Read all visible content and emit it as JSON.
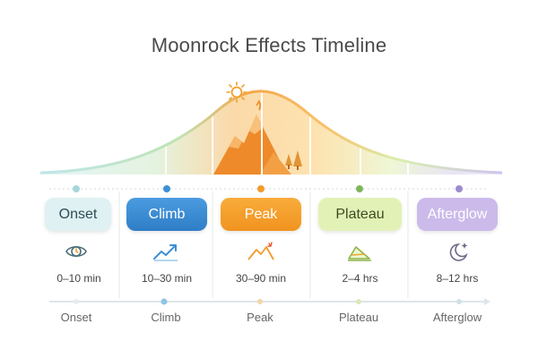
{
  "title": "Moonrock Effects Timeline",
  "phases": [
    {
      "name": "Onset",
      "duration": "0–10 min",
      "icon": "clock-eye-icon",
      "color": "#dff1f2",
      "text_color": "#2f4b55"
    },
    {
      "name": "Climb",
      "duration": "10–30 min",
      "icon": "trend-up-icon",
      "color": "#3d8fd6",
      "text_color": "#ffffff"
    },
    {
      "name": "Peak",
      "duration": "30–90 min",
      "icon": "mountain-peak-icon",
      "color": "#f6a025",
      "text_color": "#ffffff"
    },
    {
      "name": "Plateau",
      "duration": "2–4 hrs",
      "icon": "plateau-icon",
      "color": "#dff0b4",
      "text_color": "#3e4a20"
    },
    {
      "name": "Afterglow",
      "duration": "8–12 hrs",
      "icon": "moon-star-icon",
      "color": "#c9b7ea",
      "text_color": "#ffffff"
    }
  ],
  "timeline_labels": [
    "Onset",
    "Climb",
    "Peak",
    "Plateau",
    "Afterglow"
  ],
  "accent_colors": {
    "onset": "#9fd3d8",
    "climb": "#4aa3d8",
    "peak": "#f39a2b",
    "plateau": "#9cc46a",
    "afterglow": "#9d8ad0"
  }
}
